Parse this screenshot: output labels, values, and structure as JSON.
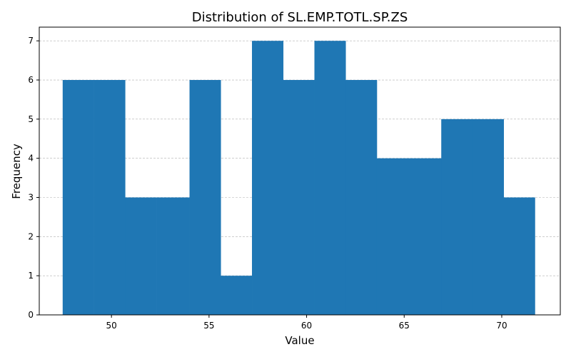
{
  "chart_data": {
    "type": "bar",
    "title": "Distribution of SL.EMP.TOTL.SP.ZS",
    "xlabel": "Value",
    "ylabel": "Frequency",
    "bin_edges": [
      47.5,
      49.1,
      50.7,
      52.3,
      54.0,
      55.6,
      57.2,
      58.8,
      60.4,
      62.0,
      63.6,
      65.2,
      66.9,
      68.5,
      70.1,
      71.7
    ],
    "values": [
      6,
      6,
      3,
      3,
      6,
      1,
      7,
      6,
      7,
      6,
      4,
      4,
      5,
      5,
      3
    ],
    "xlim": [
      46.3,
      73.0
    ],
    "ylim": [
      0,
      7.35
    ],
    "xticks": [
      50,
      55,
      60,
      65,
      70
    ],
    "yticks": [
      0,
      1,
      2,
      3,
      4,
      5,
      6,
      7
    ],
    "grid": true,
    "bar_color": "#1f77b4"
  }
}
